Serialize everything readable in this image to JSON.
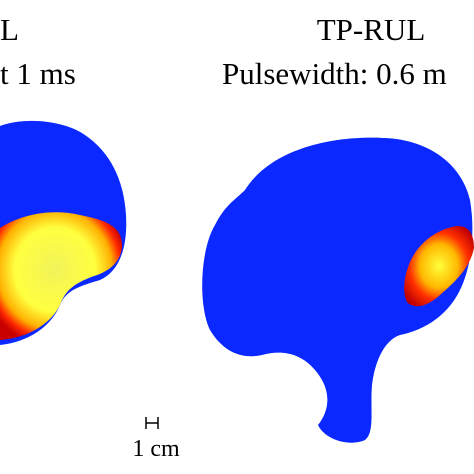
{
  "panels": [
    {
      "title": "L",
      "subtitle": "t 1 ms"
    },
    {
      "title": "TP-RUL",
      "subtitle": "Pulsewidth: 0.6 m"
    }
  ],
  "scale_bar": {
    "label": "1 cm"
  }
}
